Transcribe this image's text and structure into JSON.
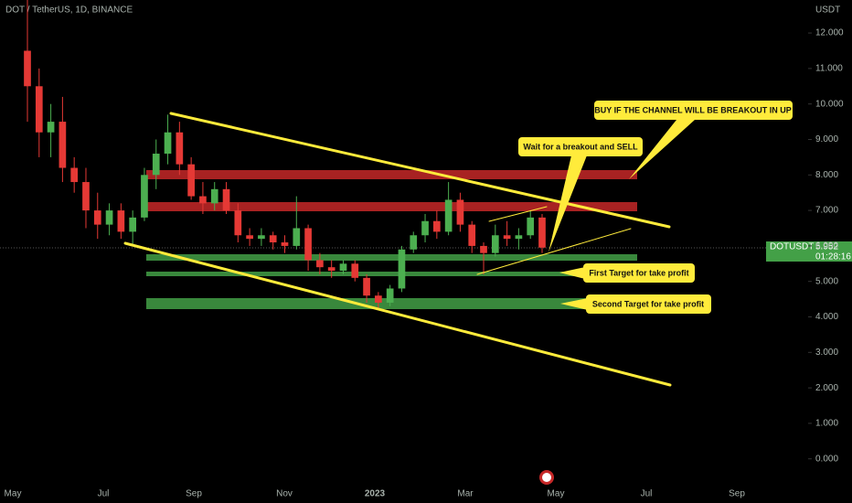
{
  "chart_data": {
    "type": "candlestick",
    "title": "DOT / TetherUS, 1D, BINANCE",
    "y_unit": "USDT",
    "symbol": "DOTUSDT",
    "countdown": "01:28:16",
    "up_color": "#4caf50",
    "down_color": "#e53935",
    "open": [
      11.5,
      10.5,
      9.2,
      9.5,
      8.2,
      7.8,
      7.0,
      6.6,
      7.0,
      6.4,
      6.8,
      8.0,
      8.6,
      9.2,
      8.3,
      7.4,
      7.2,
      7.6,
      7.0,
      6.3,
      6.2,
      6.3,
      6.1,
      6.0,
      6.5,
      5.6,
      5.4,
      5.3,
      5.5,
      5.1,
      4.6,
      4.4,
      4.8,
      5.9,
      6.3,
      6.7,
      6.4,
      7.3,
      6.6,
      6.0,
      5.8,
      6.3,
      6.2,
      6.3,
      6.8
    ],
    "high": [
      13.0,
      11.0,
      10.0,
      10.2,
      8.5,
      8.2,
      7.5,
      7.2,
      7.2,
      7.0,
      8.2,
      9.0,
      9.7,
      9.5,
      8.5,
      7.8,
      7.8,
      7.8,
      7.2,
      6.5,
      6.5,
      6.4,
      6.3,
      7.4,
      6.6,
      5.8,
      5.6,
      5.6,
      5.6,
      5.2,
      4.7,
      4.9,
      6.0,
      6.4,
      6.9,
      7.0,
      7.8,
      7.5,
      6.7,
      6.1,
      6.6,
      6.7,
      6.5,
      7.0,
      6.9
    ],
    "low": [
      9.5,
      8.5,
      8.5,
      7.8,
      7.5,
      6.5,
      6.2,
      6.3,
      6.2,
      6.0,
      6.7,
      7.6,
      8.3,
      8.0,
      7.3,
      6.9,
      7.0,
      6.9,
      6.1,
      6.0,
      6.0,
      5.9,
      5.8,
      5.9,
      5.3,
      5.2,
      5.1,
      5.2,
      5.0,
      4.4,
      4.2,
      4.3,
      4.7,
      5.8,
      6.1,
      6.2,
      6.3,
      6.4,
      5.8,
      5.2,
      5.7,
      6.0,
      5.9,
      6.2,
      5.8
    ],
    "close": [
      10.5,
      9.2,
      9.5,
      8.2,
      7.8,
      7.0,
      6.6,
      7.0,
      6.4,
      6.8,
      8.0,
      8.6,
      9.2,
      8.3,
      7.4,
      7.2,
      7.6,
      7.0,
      6.3,
      6.2,
      6.3,
      6.1,
      6.0,
      6.5,
      5.6,
      5.4,
      5.3,
      5.5,
      5.1,
      4.6,
      4.4,
      4.8,
      5.9,
      6.3,
      6.7,
      6.4,
      7.3,
      6.6,
      6.0,
      5.8,
      6.3,
      6.2,
      6.3,
      6.8,
      5.952
    ],
    "ylim": [
      -0.6,
      12.93
    ],
    "yticks": [
      {
        "value": 12,
        "label": "12.000"
      },
      {
        "value": 11,
        "label": "11.000"
      },
      {
        "value": 10,
        "label": "10.000"
      },
      {
        "value": 9,
        "label": "9.000"
      },
      {
        "value": 8,
        "label": "8.000"
      },
      {
        "value": 7,
        "label": "7.000"
      },
      {
        "value": 6,
        "label": "6.000"
      },
      {
        "value": 5,
        "label": "5.000"
      },
      {
        "value": 4,
        "label": "4.000"
      },
      {
        "value": 3,
        "label": "3.000"
      },
      {
        "value": 2,
        "label": "2.000"
      },
      {
        "value": 1,
        "label": "1.000"
      },
      {
        "value": 0,
        "label": "0.000"
      }
    ],
    "xtick_labels": [
      "May",
      "Jul",
      "Sep",
      "Nov",
      "2023",
      "Mar",
      "May",
      "Jul",
      "Sep"
    ],
    "annotations": [
      "BUY IF THE CHANNEL WILL BE BREAKOUT IN UP",
      "Wait for a breakout and SELL",
      "First Target for take profit",
      "Second Target for take profit"
    ]
  }
}
